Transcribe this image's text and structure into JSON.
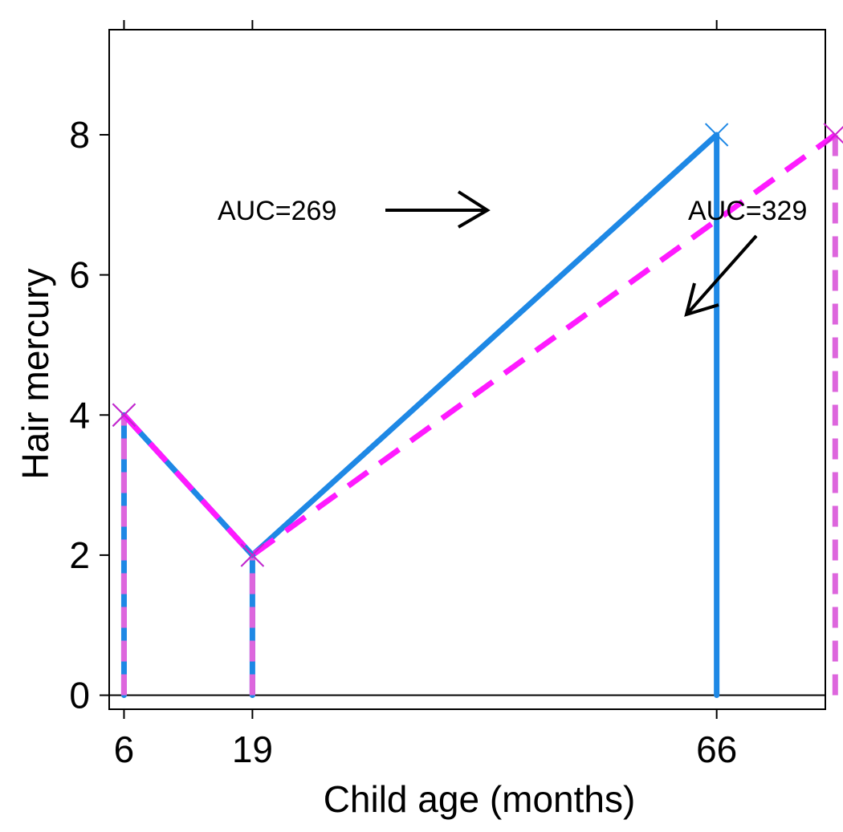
{
  "chart_data": {
    "type": "line",
    "xlabel": "Child age (months)",
    "ylabel": "Hair mercury",
    "xlim": [
      4.5,
      77
    ],
    "ylim": [
      -0.2,
      9.5
    ],
    "x_ticks": [
      6,
      19,
      66
    ],
    "y_ticks": [
      0,
      2,
      4,
      6,
      8
    ],
    "series": [
      {
        "name": "AUC=269",
        "style": "solid",
        "color": "#1e88e5",
        "x": [
          6,
          19,
          66
        ],
        "y": [
          4,
          2,
          8
        ]
      },
      {
        "name": "AUC=329",
        "style": "dashed",
        "color": "#ff1aff",
        "drop_color": "#dd66dd",
        "x": [
          6,
          19,
          78
        ],
        "y": [
          4,
          2,
          8
        ]
      }
    ],
    "annotations": [
      {
        "text": "AUC=269",
        "series": "solid",
        "arrow": "right"
      },
      {
        "text": "AUC=329",
        "series": "dashed",
        "arrow": "down-left"
      }
    ]
  }
}
